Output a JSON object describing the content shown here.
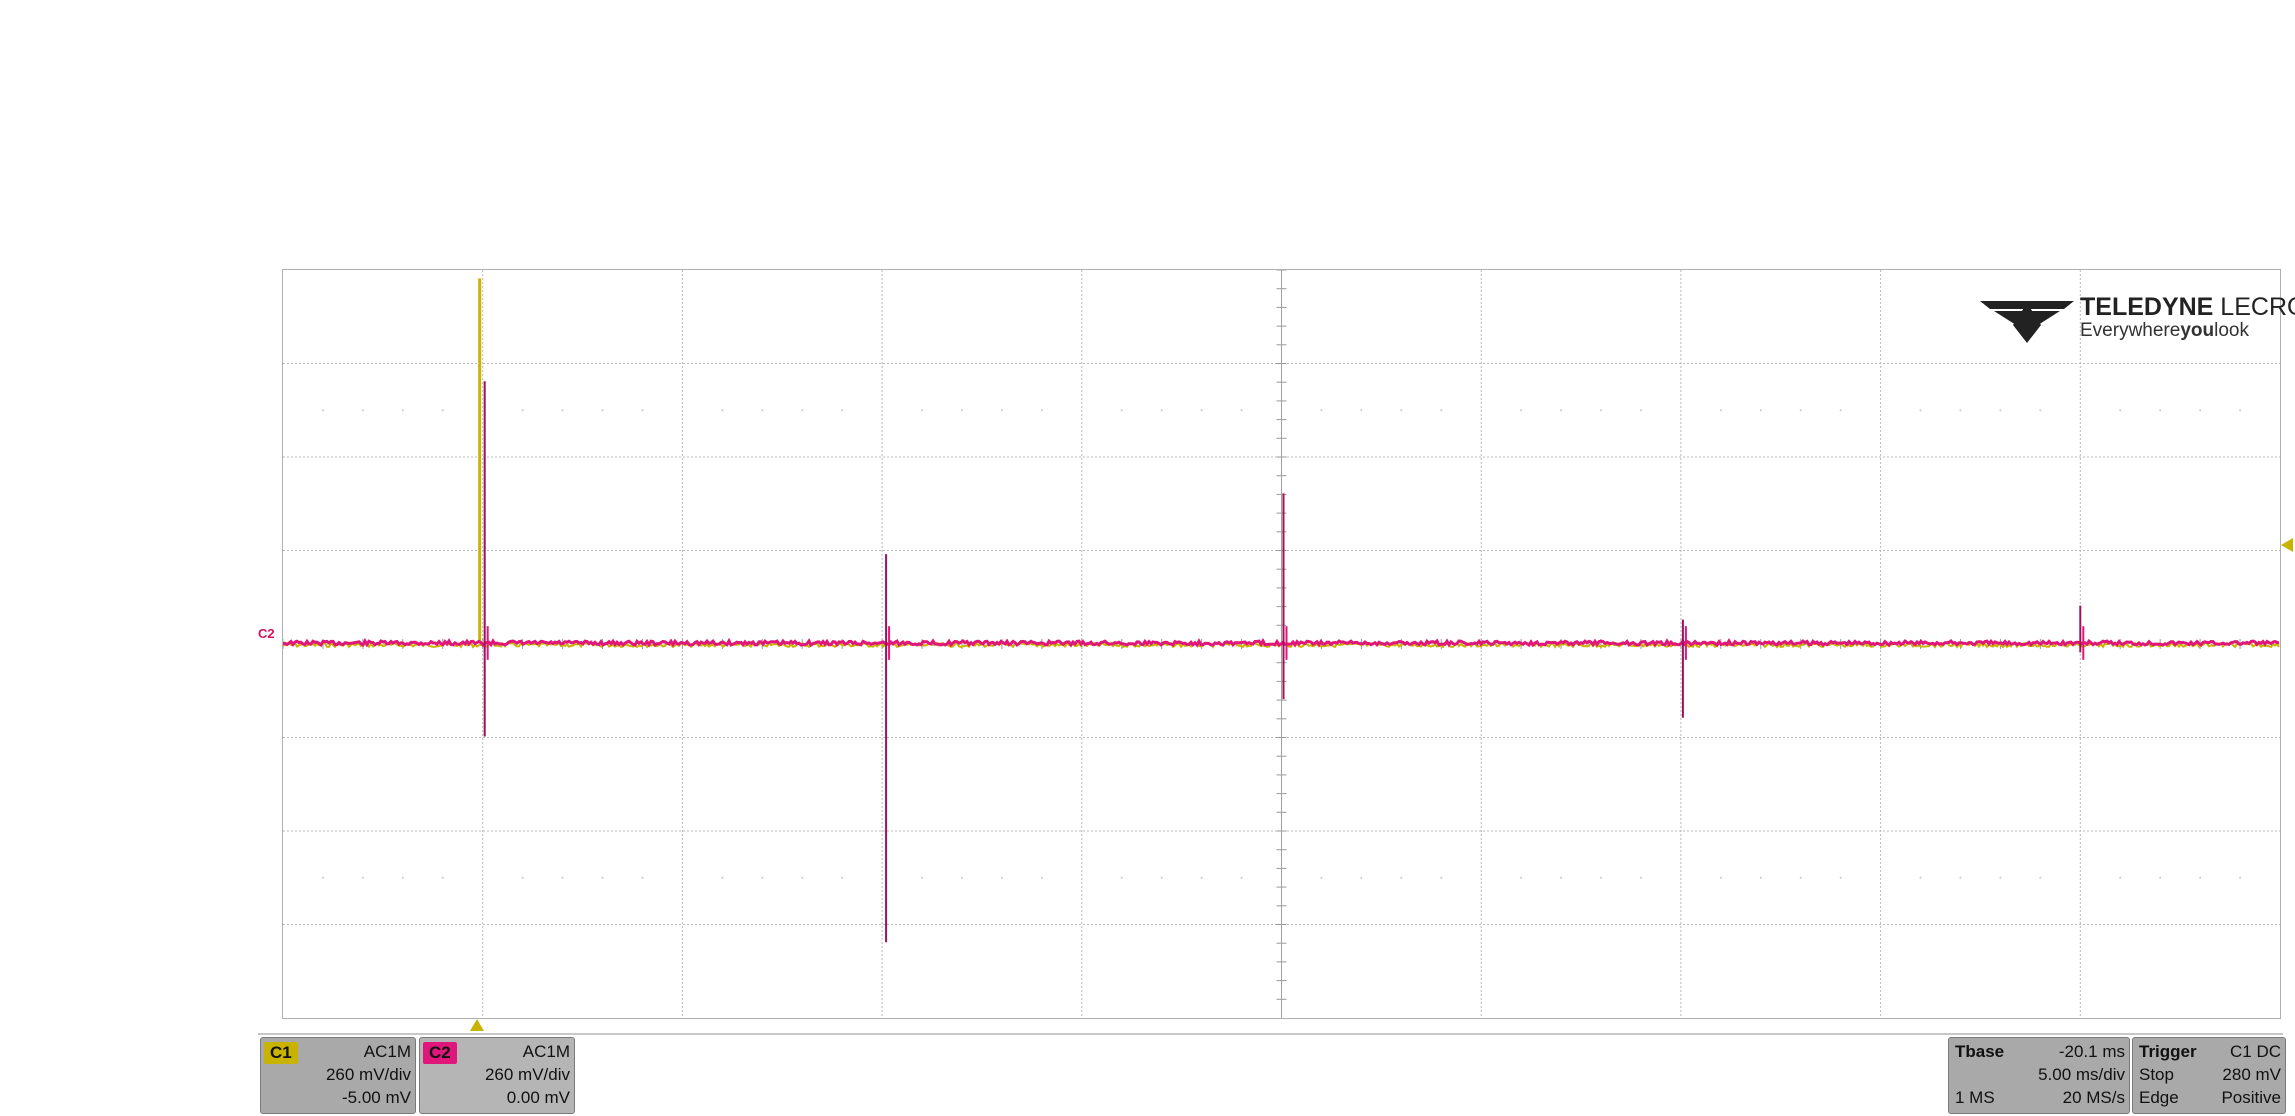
{
  "channels": [
    {
      "name": "C1",
      "coupling": "AC1M",
      "scale": "260 mV/div",
      "offset": "-5.00 mV",
      "color": "#c8b400"
    },
    {
      "name": "C2",
      "coupling": "AC1M",
      "scale": "260 mV/div",
      "offset": "0.00 mV",
      "color": "#e0177a"
    }
  ],
  "timebase": {
    "label": "Tbase",
    "delay": "-20.1 ms",
    "scale": "5.00 ms/div",
    "memory": "1 MS",
    "sample_rate": "20 MS/s"
  },
  "trigger": {
    "label": "Trigger",
    "source": "C1 DC",
    "mode": "Stop",
    "level": "280 mV",
    "type": "Edge",
    "slope": "Positive"
  },
  "logo": {
    "brand_bold": "TELEDYNE",
    "brand_rest": " LECROY",
    "tag_pre": "Everywhere",
    "tag_bold": "you",
    "tag_post": "look"
  },
  "waveform_marker": "C2",
  "colors": {
    "c1": "#c8b400",
    "c2": "#e0177a",
    "grid": "#b8b8b8"
  },
  "chart_data": {
    "type": "line",
    "title": "",
    "x_divisions": 10,
    "y_divisions": 8,
    "series": [
      {
        "name": "C1",
        "values": [
          0,
          0,
          3.9,
          0,
          0,
          0,
          0,
          0,
          0,
          0
        ]
      },
      {
        "name": "C2",
        "values": [
          0,
          0,
          2.8,
          -1.0,
          0,
          0.9,
          -3.2,
          0,
          1.6,
          -0.6,
          0.4,
          -0.8,
          0.4
        ]
      }
    ]
  }
}
